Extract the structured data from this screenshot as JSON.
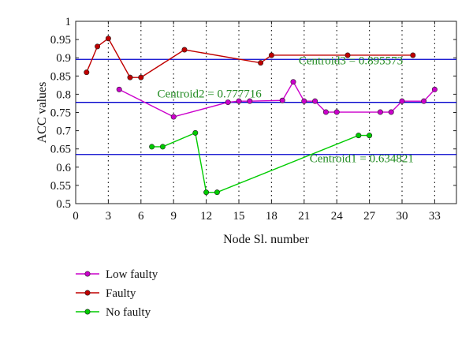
{
  "chart_data": {
    "type": "line",
    "title": "",
    "xlabel": "Node Sl. number",
    "ylabel": "ACC values",
    "xlim": [
      0,
      35
    ],
    "ylim": [
      0.5,
      1.0
    ],
    "xticks": [
      0,
      3,
      6,
      9,
      12,
      15,
      18,
      21,
      24,
      27,
      30,
      33
    ],
    "yticks": [
      0.5,
      0.55,
      0.6,
      0.65,
      0.7,
      0.75,
      0.8,
      0.85,
      0.9,
      0.95,
      1.0
    ],
    "ytick_labels": [
      "0.5",
      "0.55",
      "0.6",
      "0.65",
      "0.7",
      "0.75",
      "0.8",
      "0.85",
      "0.9",
      "0.95",
      "1"
    ],
    "grid": "vertical dotted",
    "legend_position": "below",
    "series": [
      {
        "name": "Low faulty",
        "color": "#cc00cc",
        "points": [
          [
            4,
            0.813
          ],
          [
            9,
            0.738
          ],
          [
            14,
            0.778
          ],
          [
            15,
            0.781
          ],
          [
            16,
            0.781
          ],
          [
            19,
            0.783
          ],
          [
            20,
            0.834
          ],
          [
            21,
            0.781
          ],
          [
            22,
            0.781
          ],
          [
            23,
            0.751
          ],
          [
            24,
            0.751
          ],
          [
            28,
            0.751
          ],
          [
            29,
            0.751
          ],
          [
            30,
            0.781
          ],
          [
            32,
            0.781
          ],
          [
            33,
            0.813
          ]
        ]
      },
      {
        "name": "Faulty",
        "color": "#c00000",
        "points": [
          [
            1,
            0.86
          ],
          [
            2,
            0.931
          ],
          [
            3,
            0.953
          ],
          [
            5,
            0.846
          ],
          [
            6,
            0.846
          ],
          [
            10,
            0.922
          ],
          [
            17,
            0.886
          ],
          [
            18,
            0.907
          ],
          [
            25,
            0.907
          ],
          [
            31,
            0.907
          ]
        ]
      },
      {
        "name": "No faulty",
        "color": "#00cc00",
        "points": [
          [
            7,
            0.656
          ],
          [
            8,
            0.656
          ],
          [
            11,
            0.694
          ],
          [
            12,
            0.531
          ],
          [
            13,
            0.531
          ],
          [
            26,
            0.687
          ],
          [
            27,
            0.687
          ]
        ]
      }
    ],
    "reference_lines": [
      {
        "value": 0.895573,
        "color": "#0000cc",
        "label": "Centroid3 = 0.895573",
        "label_x": 20.5,
        "label_y": 0.882
      },
      {
        "value": 0.777716,
        "color": "#0000cc",
        "label": "Centroid2 = 0.777716",
        "label_x": 7.5,
        "label_y": 0.791
      },
      {
        "value": 0.634821,
        "color": "#0000cc",
        "label": "Centroid1 = 0.634821",
        "label_x": 21.5,
        "label_y": 0.614
      }
    ]
  }
}
